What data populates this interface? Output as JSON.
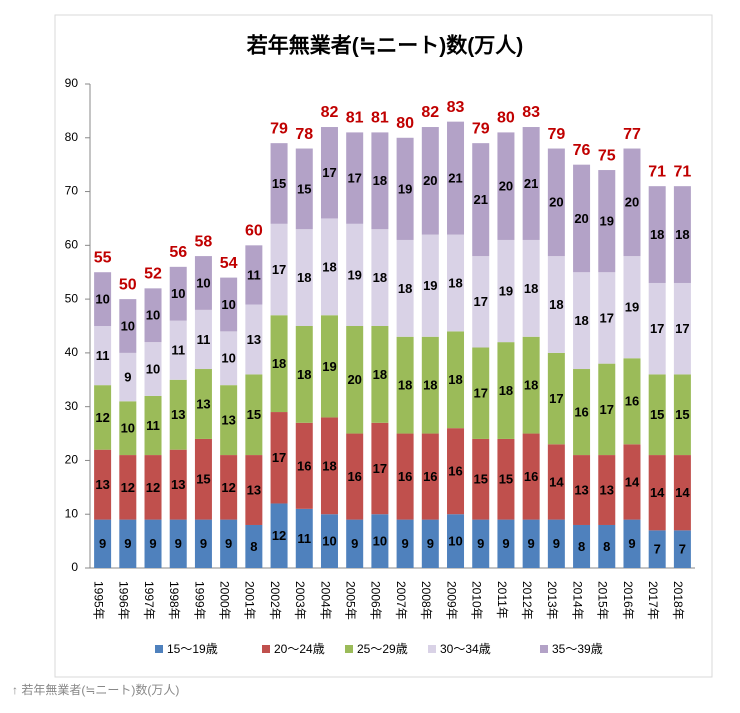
{
  "chart_data": {
    "type": "stacked-bar",
    "title": "若年無業者(≒ニート)数(万人)",
    "categories": [
      "1995年",
      "1996年",
      "1997年",
      "1998年",
      "1999年",
      "2000年",
      "2001年",
      "2002年",
      "2003年",
      "2004年",
      "2005年",
      "2006年",
      "2007年",
      "2008年",
      "2009年",
      "2010年",
      "2011年",
      "2012年",
      "2013年",
      "2014年",
      "2015年",
      "2016年",
      "2017年",
      "2018年"
    ],
    "series": [
      {
        "name": "15〜19歳",
        "color": "#4f81bd",
        "values": [
          9,
          9,
          9,
          9,
          9,
          9,
          8,
          12,
          11,
          10,
          9,
          10,
          9,
          9,
          10,
          9,
          9,
          9,
          9,
          8,
          8,
          9,
          7,
          7
        ]
      },
      {
        "name": "20〜24歳",
        "color": "#c0504d",
        "values": [
          13,
          12,
          12,
          13,
          15,
          12,
          13,
          17,
          16,
          18,
          16,
          17,
          16,
          16,
          16,
          15,
          15,
          16,
          14,
          13,
          13,
          14,
          14,
          14
        ]
      },
      {
        "name": "25〜29歳",
        "color": "#9bbb59",
        "values": [
          12,
          10,
          11,
          13,
          13,
          13,
          15,
          18,
          18,
          19,
          20,
          18,
          18,
          18,
          18,
          17,
          18,
          18,
          17,
          16,
          17,
          16,
          15,
          15
        ]
      },
      {
        "name": "30〜34歳",
        "color": "#d9d2e6",
        "values": [
          11,
          9,
          10,
          11,
          11,
          10,
          13,
          17,
          18,
          18,
          19,
          18,
          18,
          19,
          18,
          17,
          19,
          18,
          18,
          18,
          17,
          19,
          17,
          17
        ]
      },
      {
        "name": "35〜39歳",
        "color": "#b3a2c7",
        "values": [
          10,
          10,
          10,
          10,
          10,
          10,
          11,
          15,
          15,
          17,
          17,
          18,
          19,
          20,
          21,
          21,
          20,
          21,
          20,
          20,
          19,
          20,
          18,
          18
        ]
      }
    ],
    "totals": [
      55,
      50,
      52,
      56,
      58,
      54,
      60,
      79,
      78,
      82,
      81,
      81,
      80,
      82,
      83,
      79,
      80,
      83,
      79,
      76,
      75,
      77,
      71,
      71
    ],
    "totals_color": "#c00000",
    "ylim": [
      0,
      90
    ],
    "yticks": [
      0,
      10,
      20,
      30,
      40,
      50,
      60,
      70,
      80,
      90
    ],
    "grid": false,
    "legend": "bottom"
  },
  "caption": "↑ 若年無業者(≒ニート)数(万人)"
}
